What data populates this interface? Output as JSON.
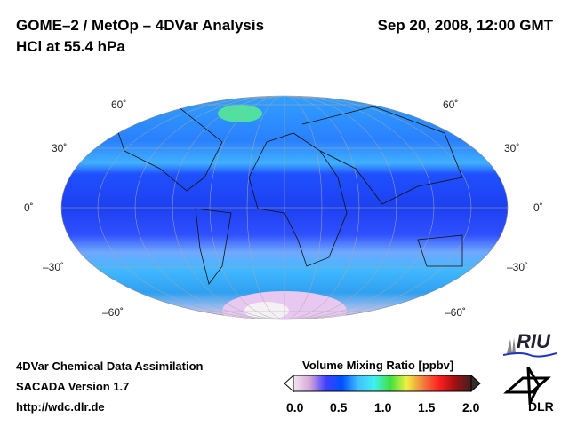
{
  "header": {
    "title": "GOME–2 / MetOp – 4DVar Analysis",
    "subtitle": "HCl at 55.4 hPa",
    "datetime": "Sep 20, 2008, 12:00 GMT"
  },
  "map": {
    "lat_labels_left": [
      "60˚",
      "30˚",
      "0˚",
      "–30˚",
      "–60˚"
    ],
    "lat_labels_right": [
      "60˚",
      "30˚",
      "0˚",
      "–30˚",
      "–60˚"
    ]
  },
  "footer": {
    "line1": "4DVar Chemical Data Assimilation",
    "line2": "SACADA Version 1.7",
    "line3": "http://wdc.dlr.de"
  },
  "colorbar": {
    "title": "Volume Mixing Ratio [ppbv]",
    "ticks": [
      "0.0",
      "0.5",
      "1.0",
      "1.5",
      "2.0"
    ],
    "colors": [
      "#f0e8ee",
      "#d8a8d8",
      "#4040ff",
      "#0050ff",
      "#40c0ff",
      "#40f0f0",
      "#40e040",
      "#f0f040",
      "#f08040",
      "#ff2020",
      "#a01010",
      "#402020"
    ]
  },
  "logos": {
    "riu": "RIU",
    "dlr": "DLR"
  }
}
